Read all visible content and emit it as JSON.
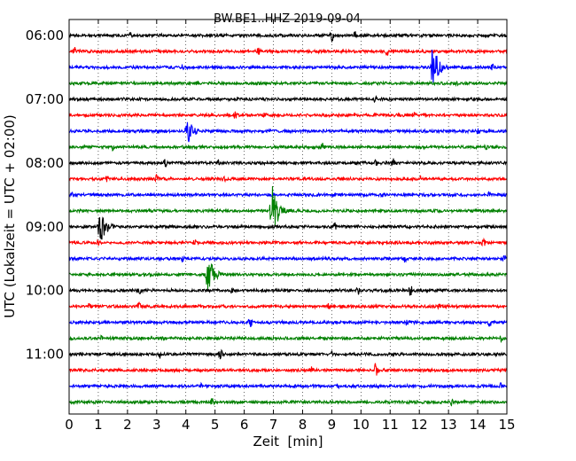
{
  "chart_data": {
    "type": "line",
    "title": "BW.BE1..HHZ 2019-09-04",
    "xlabel": "Zeit  [min]",
    "ylabel": "UTC (Lokalzeit = UTC + 02:00)",
    "xlim": [
      0,
      15
    ],
    "x_ticks": [
      "0",
      "1",
      "2",
      "3",
      "4",
      "5",
      "6",
      "7",
      "8",
      "9",
      "10",
      "11",
      "12",
      "13",
      "14",
      "15"
    ],
    "y_ticks": [
      "06:00",
      "07:00",
      "08:00",
      "09:00",
      "10:00",
      "11:00"
    ],
    "grid": "vertical dotted",
    "trace_interval_min": 15,
    "trace_colors": [
      "#000000",
      "#ff0000",
      "#0000ff",
      "#008000"
    ],
    "series": [
      {
        "start": "06:00",
        "color": "#000000",
        "events": [
          {
            "t": 2.1,
            "amp": 0.3
          },
          {
            "t": 9.0,
            "amp": 0.5
          },
          {
            "t": 9.8,
            "amp": 0.35
          }
        ]
      },
      {
        "start": "06:15",
        "color": "#ff0000",
        "events": [
          {
            "t": 0.2,
            "amp": 0.35
          },
          {
            "t": 3.1,
            "amp": 0.3
          },
          {
            "t": 6.5,
            "amp": 0.35
          },
          {
            "t": 10.9,
            "amp": 0.4
          }
        ]
      },
      {
        "start": "06:30",
        "color": "#0000ff",
        "events": [
          {
            "t": 3.9,
            "amp": 0.3
          },
          {
            "t": 12.4,
            "amp": 2.0
          },
          {
            "t": 14.5,
            "amp": 0.3
          }
        ]
      },
      {
        "start": "06:45",
        "color": "#008000",
        "events": [
          {
            "t": 4.4,
            "amp": 0.25
          },
          {
            "t": 13.3,
            "amp": 0.25
          }
        ]
      },
      {
        "start": "07:00",
        "color": "#000000",
        "events": [
          {
            "t": 10.5,
            "amp": 0.3
          }
        ]
      },
      {
        "start": "07:15",
        "color": "#ff0000",
        "events": [
          {
            "t": 5.7,
            "amp": 0.35
          },
          {
            "t": 6.7,
            "amp": 0.35
          },
          {
            "t": 11.8,
            "amp": 0.3
          }
        ]
      },
      {
        "start": "07:30",
        "color": "#0000ff",
        "events": [
          {
            "t": 4.0,
            "amp": 1.2
          },
          {
            "t": 14.0,
            "amp": 0.25
          }
        ]
      },
      {
        "start": "07:45",
        "color": "#008000",
        "events": [
          {
            "t": 1.5,
            "amp": 0.3
          },
          {
            "t": 8.7,
            "amp": 0.6
          },
          {
            "t": 14.3,
            "amp": 0.3
          }
        ]
      },
      {
        "start": "08:00",
        "color": "#000000",
        "events": [
          {
            "t": 3.3,
            "amp": 0.35
          },
          {
            "t": 5.1,
            "amp": 0.3
          },
          {
            "t": 10.5,
            "amp": 0.35
          },
          {
            "t": 11.1,
            "amp": 0.4
          }
        ]
      },
      {
        "start": "08:15",
        "color": "#ff0000",
        "events": [
          {
            "t": 1.3,
            "amp": 0.3
          },
          {
            "t": 3.0,
            "amp": 0.35
          },
          {
            "t": 5.3,
            "amp": 0.35
          },
          {
            "t": 12.0,
            "amp": 0.4
          }
        ]
      },
      {
        "start": "08:30",
        "color": "#0000ff",
        "events": [
          {
            "t": 0.1,
            "amp": 0.3
          },
          {
            "t": 10.8,
            "amp": 0.3
          },
          {
            "t": 14.4,
            "amp": 0.25
          }
        ]
      },
      {
        "start": "08:45",
        "color": "#008000",
        "events": [
          {
            "t": 6.9,
            "amp": 2.3
          }
        ]
      },
      {
        "start": "09:00",
        "color": "#000000",
        "events": [
          {
            "t": 1.0,
            "amp": 1.5
          },
          {
            "t": 9.1,
            "amp": 0.35
          }
        ]
      },
      {
        "start": "09:15",
        "color": "#ff0000",
        "events": [
          {
            "t": 1.0,
            "amp": 0.3
          },
          {
            "t": 4.3,
            "amp": 0.3
          },
          {
            "t": 14.2,
            "amp": 0.4
          }
        ]
      },
      {
        "start": "09:30",
        "color": "#0000ff",
        "events": [
          {
            "t": 3.9,
            "amp": 0.3
          },
          {
            "t": 11.5,
            "amp": 0.35
          },
          {
            "t": 14.9,
            "amp": 0.35
          }
        ]
      },
      {
        "start": "09:45",
        "color": "#008000",
        "events": [
          {
            "t": 4.7,
            "amp": 1.6
          }
        ]
      },
      {
        "start": "10:00",
        "color": "#000000",
        "events": [
          {
            "t": 2.4,
            "amp": 0.35
          },
          {
            "t": 5.6,
            "amp": 0.35
          },
          {
            "t": 9.9,
            "amp": 0.35
          },
          {
            "t": 11.7,
            "amp": 0.45
          }
        ]
      },
      {
        "start": "10:15",
        "color": "#ff0000",
        "events": [
          {
            "t": 0.7,
            "amp": 0.3
          },
          {
            "t": 2.4,
            "amp": 0.35
          },
          {
            "t": 8.9,
            "amp": 0.3
          },
          {
            "t": 12.7,
            "amp": 0.3
          }
        ]
      },
      {
        "start": "10:30",
        "color": "#0000ff",
        "events": [
          {
            "t": 6.2,
            "amp": 0.5
          },
          {
            "t": 11.6,
            "amp": 0.4
          },
          {
            "t": 14.4,
            "amp": 0.3
          }
        ]
      },
      {
        "start": "10:45",
        "color": "#008000",
        "events": [
          {
            "t": 1.1,
            "amp": 0.25
          },
          {
            "t": 14.8,
            "amp": 0.35
          }
        ]
      },
      {
        "start": "11:00",
        "color": "#000000",
        "events": [
          {
            "t": 3.1,
            "amp": 0.35
          },
          {
            "t": 5.2,
            "amp": 0.6
          },
          {
            "t": 9.0,
            "amp": 0.3
          }
        ]
      },
      {
        "start": "11:15",
        "color": "#ff0000",
        "events": [
          {
            "t": 8.3,
            "amp": 0.3
          },
          {
            "t": 10.5,
            "amp": 0.6
          }
        ]
      },
      {
        "start": "11:30",
        "color": "#0000ff",
        "events": [
          {
            "t": 4.5,
            "amp": 0.3
          },
          {
            "t": 9.2,
            "amp": 0.3
          },
          {
            "t": 14.8,
            "amp": 0.3
          }
        ]
      },
      {
        "start": "11:45",
        "color": "#008000",
        "events": [
          {
            "t": 4.9,
            "amp": 0.35
          },
          {
            "t": 13.1,
            "amp": 0.35
          }
        ]
      }
    ]
  }
}
